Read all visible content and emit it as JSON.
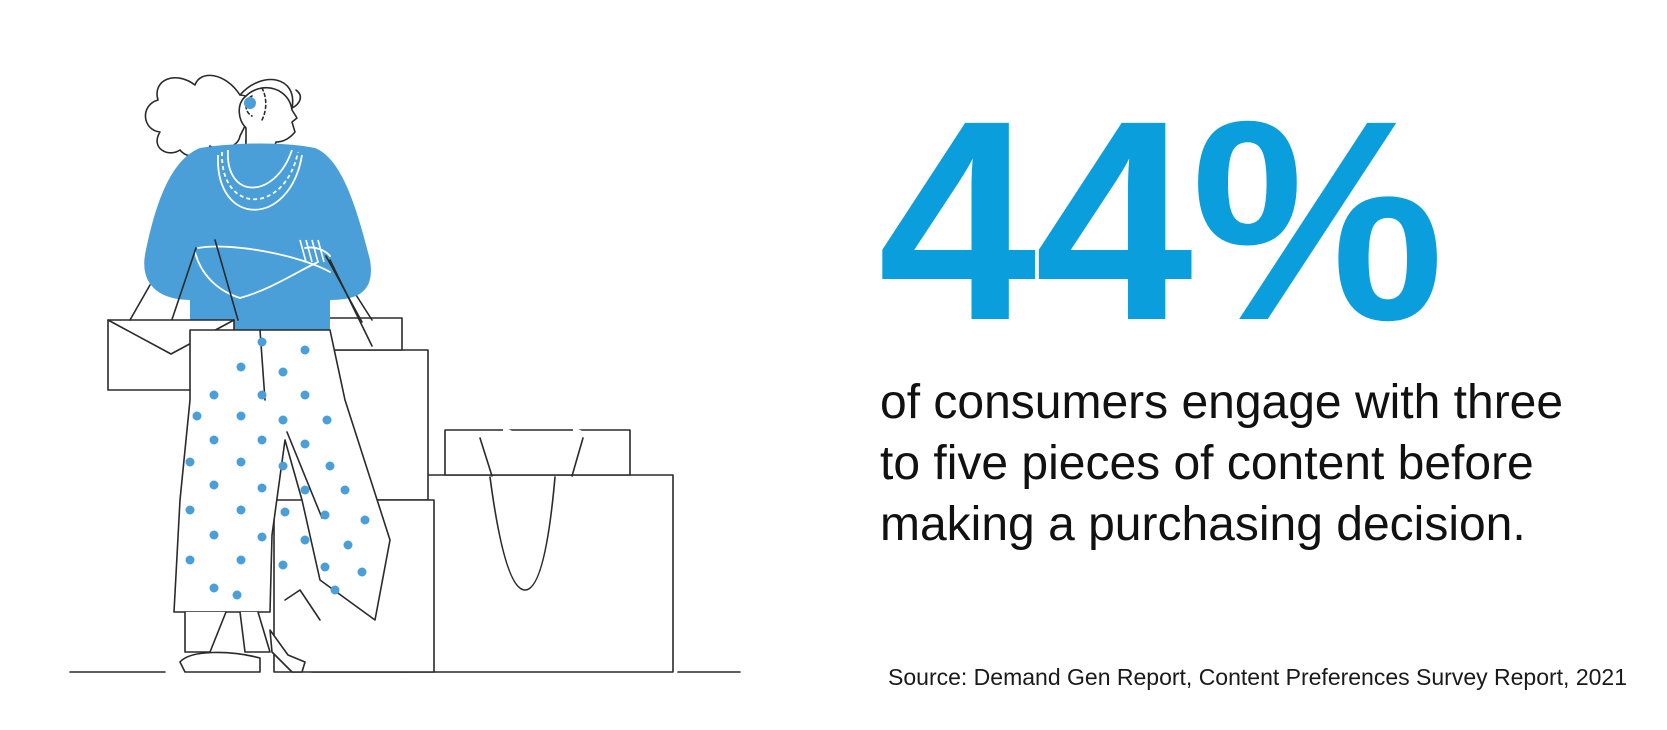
{
  "stat": {
    "value": "44%",
    "caption": "of consumers engage with three to five pieces of content before making a purchasing decision."
  },
  "source": {
    "text": "Source: Demand Gen Report, Content Preferences Survey Report, 2021"
  },
  "colors": {
    "accent": "#0a9fdc",
    "figure": "#4a9fd8",
    "line": "#2a2a2a"
  },
  "icons": {
    "illustration": "woman-with-shopping-bags-illustration"
  }
}
